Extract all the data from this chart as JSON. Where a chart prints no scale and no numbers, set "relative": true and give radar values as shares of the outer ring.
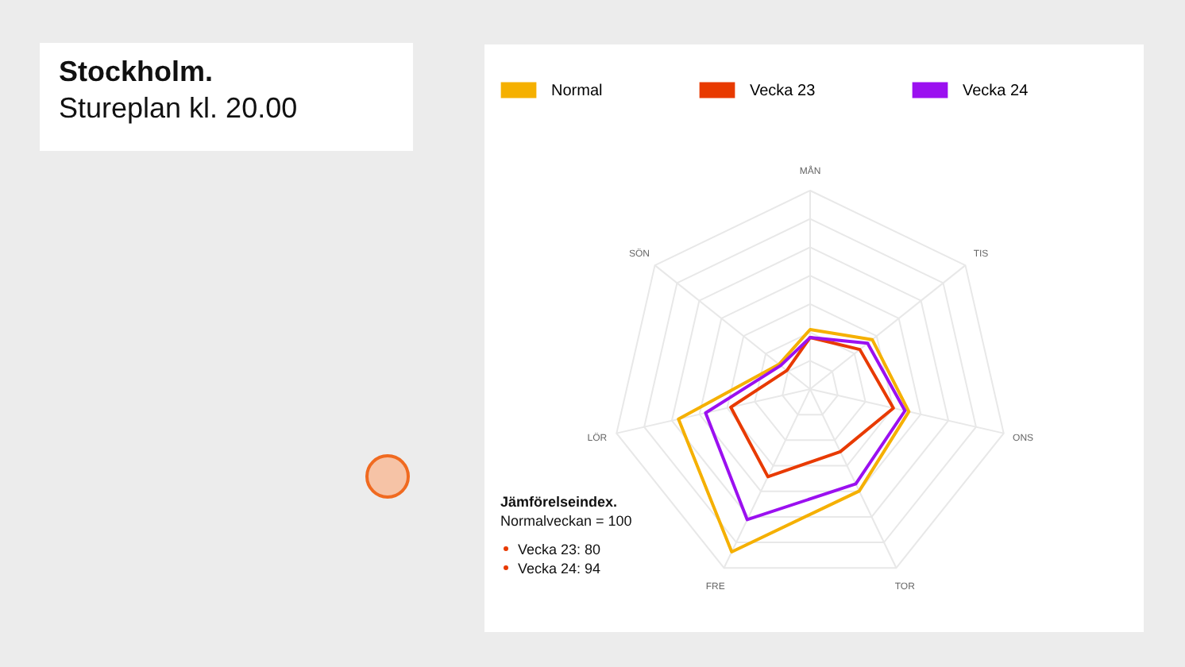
{
  "chart_data": {
    "type": "radar",
    "title": "Stockholm.",
    "subtitle": "Stureplan kl. 20.00",
    "categories": [
      "MÅN",
      "TIS",
      "ONS",
      "TOR",
      "FRE",
      "LÖR",
      "SÖN"
    ],
    "relative": true,
    "grid": true,
    "legend": "top",
    "series": [
      {
        "name": "Normal",
        "color": "#f5b000",
        "values": [
          0.3,
          0.4,
          0.51,
          0.57,
          0.91,
          0.68,
          0.2
        ]
      },
      {
        "name": "Vecka 23",
        "color": "#e83a00",
        "values": [
          0.26,
          0.32,
          0.43,
          0.35,
          0.49,
          0.41,
          0.15
        ]
      },
      {
        "name": "Vecka 24",
        "color": "#9b10f0",
        "values": [
          0.26,
          0.37,
          0.49,
          0.53,
          0.73,
          0.54,
          0.19
        ]
      }
    ],
    "annotations": [
      "Jämförelseindex.",
      "Normalveckan = 100",
      "Vecka 23: 80",
      "Vecka 24: 94"
    ]
  }
}
